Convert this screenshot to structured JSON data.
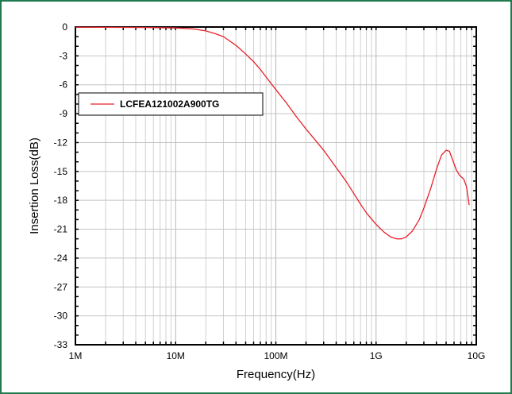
{
  "chart_data": {
    "type": "line",
    "xlabel": "Frequency(Hz)",
    "ylabel": "Insertion Loss(dB)",
    "x_scale": "log",
    "xlim": [
      1000000,
      10000000000
    ],
    "ylim": [
      -33,
      0
    ],
    "x_ticks": [
      {
        "value": 1000000,
        "label": "1M"
      },
      {
        "value": 10000000,
        "label": "10M"
      },
      {
        "value": 100000000,
        "label": "100M"
      },
      {
        "value": 1000000000,
        "label": "1G"
      },
      {
        "value": 10000000000,
        "label": "10G"
      }
    ],
    "y_ticks": [
      0,
      -3,
      -6,
      -9,
      -12,
      -15,
      -18,
      -21,
      -24,
      -27,
      -30,
      -33
    ],
    "grid": true,
    "legend_position": "upper-left",
    "series": [
      {
        "name": "LCFEA121002A900TG",
        "color": "#e8202a",
        "points": [
          [
            1000000,
            -0.02
          ],
          [
            2000000,
            -0.03
          ],
          [
            5000000,
            -0.05
          ],
          [
            10000000,
            -0.1
          ],
          [
            15000000,
            -0.2
          ],
          [
            20000000,
            -0.4
          ],
          [
            25000000,
            -0.7
          ],
          [
            30000000,
            -1.0
          ],
          [
            40000000,
            -1.9
          ],
          [
            50000000,
            -2.8
          ],
          [
            60000000,
            -3.6
          ],
          [
            70000000,
            -4.4
          ],
          [
            80000000,
            -5.2
          ],
          [
            100000000,
            -6.5
          ],
          [
            130000000,
            -8.0
          ],
          [
            160000000,
            -9.3
          ],
          [
            200000000,
            -10.6
          ],
          [
            250000000,
            -11.8
          ],
          [
            300000000,
            -12.8
          ],
          [
            400000000,
            -14.6
          ],
          [
            500000000,
            -16.0
          ],
          [
            600000000,
            -17.3
          ],
          [
            700000000,
            -18.4
          ],
          [
            800000000,
            -19.3
          ],
          [
            1000000000,
            -20.5
          ],
          [
            1200000000,
            -21.3
          ],
          [
            1400000000,
            -21.8
          ],
          [
            1600000000,
            -22.0
          ],
          [
            1800000000,
            -22.0
          ],
          [
            2000000000,
            -21.8
          ],
          [
            2300000000,
            -21.2
          ],
          [
            2700000000,
            -20.0
          ],
          [
            3000000000,
            -18.8
          ],
          [
            3500000000,
            -16.8
          ],
          [
            4000000000,
            -14.8
          ],
          [
            4500000000,
            -13.3
          ],
          [
            5000000000,
            -12.8
          ],
          [
            5400000000,
            -12.9
          ],
          [
            5800000000,
            -13.8
          ],
          [
            6300000000,
            -14.8
          ],
          [
            6800000000,
            -15.4
          ],
          [
            7500000000,
            -15.8
          ],
          [
            8000000000,
            -16.6
          ],
          [
            8500000000,
            -18.5
          ]
        ]
      }
    ]
  }
}
